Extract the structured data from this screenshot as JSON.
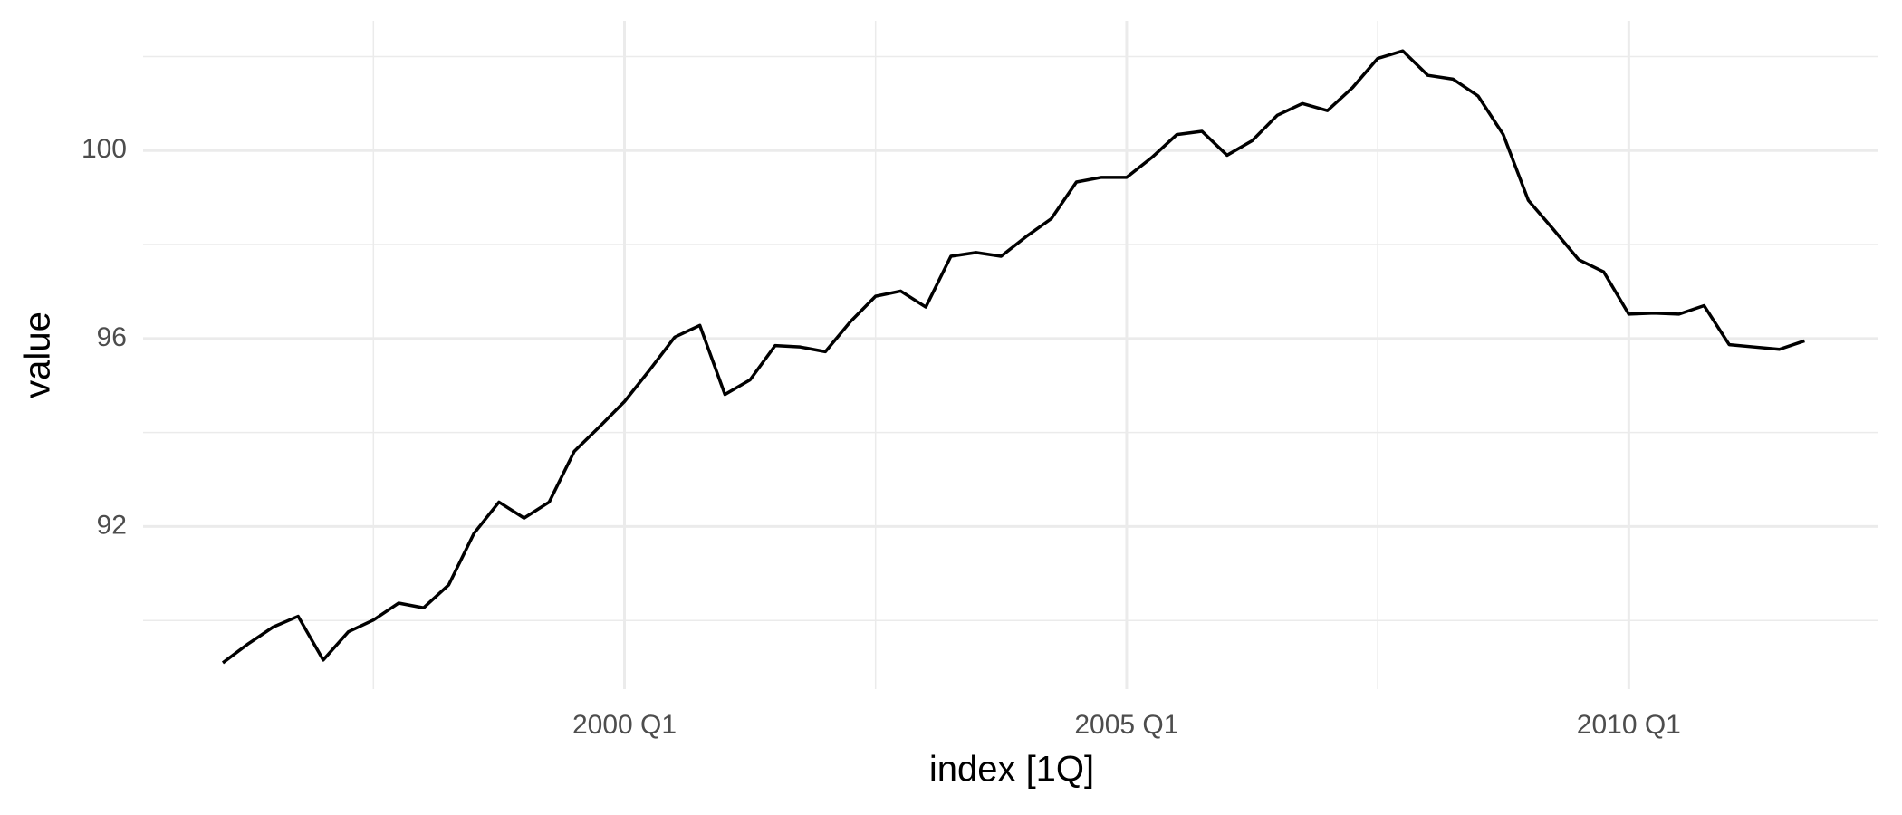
{
  "chart_data": {
    "type": "line",
    "x_label": "index [1Q]",
    "y_label": "value",
    "x": [
      "1996 Q1",
      "1996 Q2",
      "1996 Q3",
      "1996 Q4",
      "1997 Q1",
      "1997 Q2",
      "1997 Q3",
      "1997 Q4",
      "1998 Q1",
      "1998 Q2",
      "1998 Q3",
      "1998 Q4",
      "1999 Q1",
      "1999 Q2",
      "1999 Q3",
      "1999 Q4",
      "2000 Q1",
      "2000 Q2",
      "2000 Q3",
      "2000 Q4",
      "2001 Q1",
      "2001 Q2",
      "2001 Q3",
      "2001 Q4",
      "2002 Q1",
      "2002 Q2",
      "2002 Q3",
      "2002 Q4",
      "2003 Q1",
      "2003 Q2",
      "2003 Q3",
      "2003 Q4",
      "2004 Q1",
      "2004 Q2",
      "2004 Q3",
      "2004 Q4",
      "2005 Q1",
      "2005 Q2",
      "2005 Q3",
      "2005 Q4",
      "2006 Q1",
      "2006 Q2",
      "2006 Q3",
      "2006 Q4",
      "2007 Q1",
      "2007 Q2",
      "2007 Q3",
      "2007 Q4",
      "2008 Q1",
      "2008 Q2",
      "2008 Q3",
      "2008 Q4",
      "2009 Q1",
      "2009 Q2",
      "2009 Q3",
      "2009 Q4",
      "2010 Q1",
      "2010 Q2",
      "2010 Q3",
      "2010 Q4",
      "2011 Q1",
      "2011 Q2",
      "2011 Q3",
      "2011 Q4"
    ],
    "series": [
      {
        "color": "#000000",
        "values": [
          89.1,
          89.5,
          89.86,
          90.09,
          89.16,
          89.76,
          90.01,
          90.37,
          90.27,
          90.76,
          91.85,
          92.52,
          92.18,
          92.52,
          93.6,
          94.12,
          94.66,
          95.33,
          96.03,
          96.28,
          94.81,
          95.12,
          95.85,
          95.82,
          95.72,
          96.36,
          96.9,
          97.01,
          96.67,
          97.75,
          97.83,
          97.75,
          98.17,
          98.55,
          99.33,
          99.43,
          99.43,
          99.85,
          100.34,
          100.41,
          99.9,
          100.21,
          100.75,
          101.0,
          100.85,
          101.34,
          101.96,
          102.12,
          101.6,
          101.52,
          101.16,
          100.34,
          98.94,
          98.32,
          97.68,
          97.42,
          96.52,
          96.54,
          96.52,
          96.7,
          95.87,
          95.82,
          95.77,
          95.95
        ]
      }
    ],
    "xticks": [
      "2000 Q1",
      "2005 Q1",
      "2010 Q1"
    ],
    "ylim": [
      88.54,
      102.76
    ],
    "yticks": [
      92,
      96,
      100
    ],
    "grid": true
  }
}
